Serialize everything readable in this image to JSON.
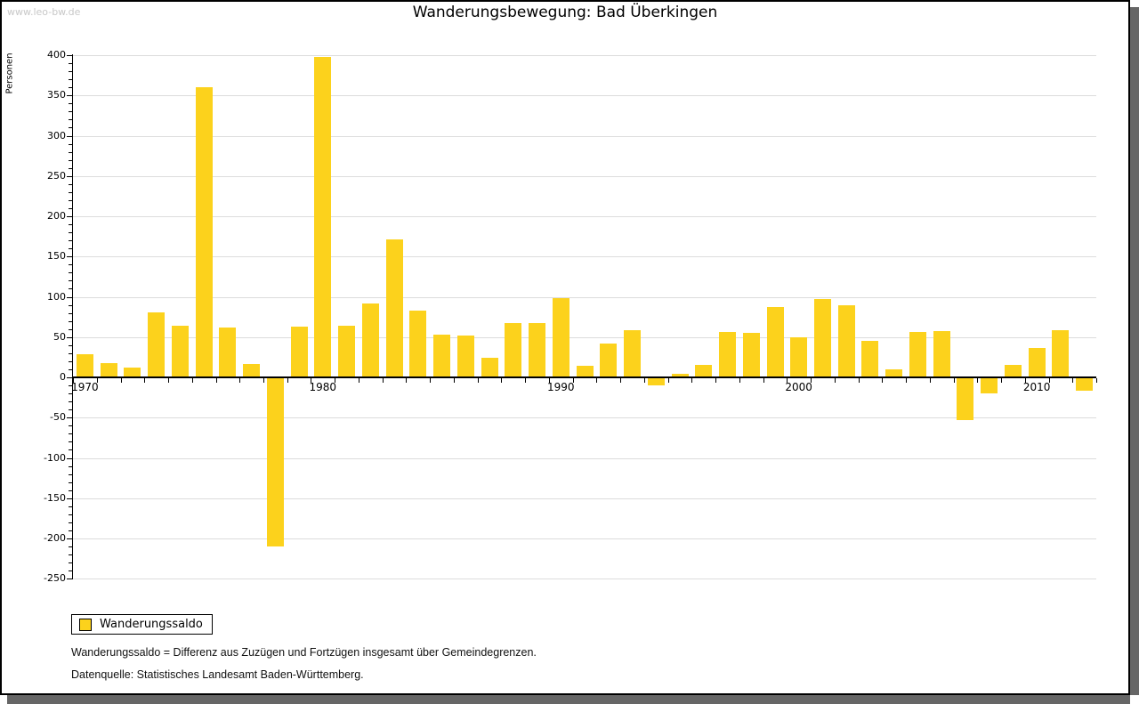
{
  "watermark": "www.leo-bw.de",
  "title": "Wanderungsbewegung: Bad Überkingen",
  "y_axis_label": "Personen",
  "legend": {
    "label": "Wanderungssaldo"
  },
  "footnotes": [
    "Wanderungssaldo = Differenz aus Zuzügen und Fortzügen insgesamt über Gemeindegrenzen.",
    "Datenquelle: Statistisches Landesamt Baden-Württemberg."
  ],
  "colors": {
    "bar": "#fcd21c",
    "grid": "#dcdcdc",
    "axis": "#000000",
    "watermark": "#c8c8c8",
    "shadow": "#666666"
  },
  "chart_data": {
    "type": "bar",
    "title": "Wanderungsbewegung: Bad Überkingen",
    "ylabel": "Personen",
    "series_name": "Wanderungssaldo",
    "x": [
      1970,
      1971,
      1972,
      1973,
      1974,
      1975,
      1976,
      1977,
      1978,
      1979,
      1980,
      1981,
      1982,
      1983,
      1984,
      1985,
      1986,
      1987,
      1988,
      1989,
      1990,
      1991,
      1992,
      1993,
      1994,
      1995,
      1996,
      1997,
      1998,
      1999,
      2000,
      2001,
      2002,
      2003,
      2004,
      2005,
      2006,
      2007,
      2008,
      2009,
      2010,
      2011,
      2012
    ],
    "values": [
      29,
      18,
      12,
      81,
      64,
      360,
      62,
      17,
      -210,
      63,
      398,
      64,
      92,
      171,
      83,
      53,
      52,
      24,
      67,
      67,
      98,
      14,
      42,
      59,
      -10,
      4,
      16,
      56,
      55,
      87,
      50,
      97,
      90,
      45,
      10,
      56,
      57,
      -53,
      -20,
      15,
      36,
      59,
      -16
    ],
    "ylim": [
      -250,
      400
    ],
    "ytick_major_step": 50,
    "ytick_minor_step": 10,
    "xtick_labels": [
      1970,
      1980,
      1990,
      2000,
      2010
    ],
    "grid": true,
    "legend_position": "bottom-left",
    "bar_color": "#fcd21c"
  }
}
